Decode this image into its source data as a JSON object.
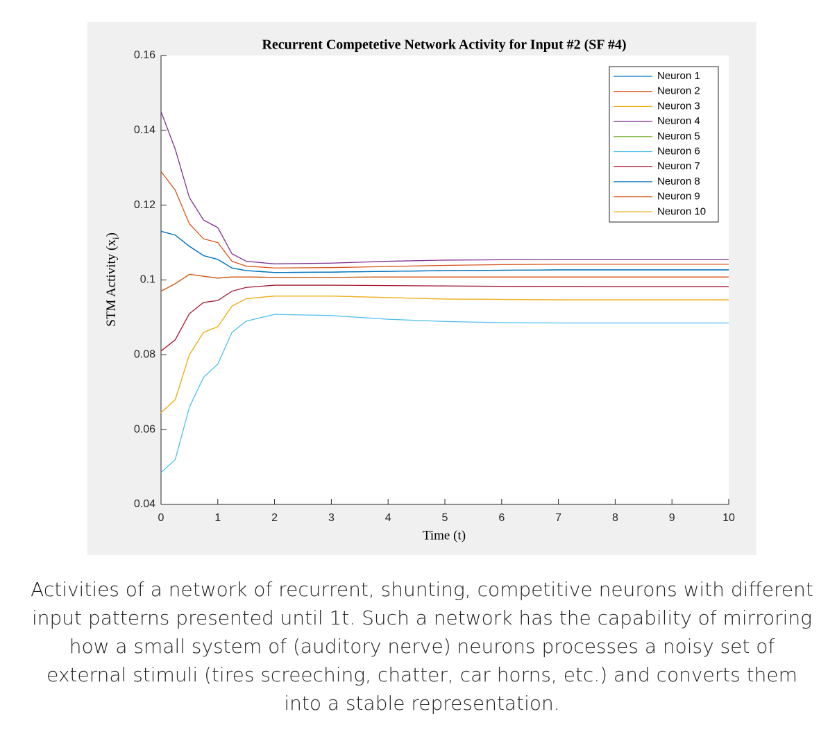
{
  "chart_data": {
    "type": "line",
    "title": "Recurrent Competetive Network Activity for Input #2 (SF #4)",
    "xlabel": "Time (t)",
    "ylabel": {
      "text": "STM Activity (x",
      "subscript": "i",
      "suffix": ")"
    },
    "x": [
      0,
      0.25,
      0.5,
      0.75,
      1,
      1.25,
      1.5,
      2,
      3,
      4,
      5,
      6,
      7,
      8,
      9,
      10
    ],
    "xlim": [
      0,
      10
    ],
    "xticks": [
      0,
      1,
      2,
      3,
      4,
      5,
      6,
      7,
      8,
      9,
      10
    ],
    "ylim": [
      0.04,
      0.16
    ],
    "yticks": [
      0.04,
      0.06,
      0.08,
      0.1,
      0.12,
      0.14,
      0.16
    ],
    "legend": "top-right",
    "series": [
      {
        "name": "Neuron 1",
        "color": "#0072BD",
        "values": [
          0.113,
          0.112,
          0.109,
          0.1065,
          0.1055,
          0.1032,
          0.1025,
          0.102,
          0.1021,
          0.1023,
          0.1025,
          0.1026,
          0.1027,
          0.1027,
          0.1027,
          0.1027
        ]
      },
      {
        "name": "Neuron 2",
        "color": "#D95319",
        "values": [
          0.129,
          0.124,
          0.115,
          0.111,
          0.11,
          0.105,
          0.1037,
          0.1032,
          0.1033,
          0.1036,
          0.1039,
          0.1041,
          0.1042,
          0.1042,
          0.1042,
          0.1042
        ]
      },
      {
        "name": "Neuron 3",
        "color": "#EDB120",
        "values": [
          0.0645,
          0.068,
          0.08,
          0.086,
          0.0875,
          0.093,
          0.095,
          0.0957,
          0.0957,
          0.0953,
          0.0949,
          0.0948,
          0.0947,
          0.0947,
          0.0947,
          0.0947
        ]
      },
      {
        "name": "Neuron 4",
        "color": "#7E2F8E",
        "values": [
          0.145,
          0.135,
          0.122,
          0.116,
          0.114,
          0.107,
          0.105,
          0.1043,
          0.1045,
          0.105,
          0.1053,
          0.1054,
          0.1054,
          0.1054,
          0.1054,
          0.1054
        ]
      },
      {
        "name": "Neuron 5",
        "color": "#77AC30",
        "values": [
          0.097,
          0.099,
          0.1015,
          0.101,
          0.1005,
          0.1008,
          0.1008,
          0.1007,
          0.1007,
          0.1008,
          0.1008,
          0.1008,
          0.1008,
          0.1008,
          0.1008,
          0.1008
        ]
      },
      {
        "name": "Neuron 6",
        "color": "#4DBEEE",
        "values": [
          0.0485,
          0.052,
          0.066,
          0.074,
          0.0775,
          0.086,
          0.089,
          0.0908,
          0.0905,
          0.0895,
          0.0889,
          0.0886,
          0.0885,
          0.0885,
          0.0885,
          0.0885
        ]
      },
      {
        "name": "Neuron 7",
        "color": "#A2142F",
        "values": [
          0.081,
          0.084,
          0.091,
          0.094,
          0.0945,
          0.097,
          0.098,
          0.0986,
          0.0986,
          0.0985,
          0.0984,
          0.0983,
          0.0983,
          0.0982,
          0.0982,
          0.0982
        ]
      },
      {
        "name": "Neuron 8",
        "color": "#0072BD",
        "values": [
          0.113,
          0.112,
          0.109,
          0.1065,
          0.1055,
          0.1032,
          0.1025,
          0.102,
          0.1021,
          0.1023,
          0.1025,
          0.1026,
          0.1027,
          0.1027,
          0.1027,
          0.1027
        ]
      },
      {
        "name": "Neuron 9",
        "color": "#D95319",
        "values": [
          0.097,
          0.099,
          0.1015,
          0.101,
          0.1005,
          0.1008,
          0.1008,
          0.1007,
          0.1007,
          0.1008,
          0.1008,
          0.1008,
          0.1008,
          0.1008,
          0.1008,
          0.1008
        ]
      },
      {
        "name": "Neuron 10",
        "color": "#EDB120",
        "values": [
          0.0645,
          0.068,
          0.08,
          0.086,
          0.0875,
          0.093,
          0.095,
          0.0957,
          0.0957,
          0.0953,
          0.0949,
          0.0948,
          0.0947,
          0.0947,
          0.0947,
          0.0947
        ]
      }
    ]
  },
  "caption": [
    "Activities of a network of recurrent, shunting, competitive neurons with different",
    "input patterns presented until 1t. Such a network has the capability of mirroring",
    "how a small system of (auditory nerve) neurons processes a noisy set of",
    "external stimuli (tires screeching, chatter, car horns, etc.) and converts them",
    "into a stable representation."
  ]
}
